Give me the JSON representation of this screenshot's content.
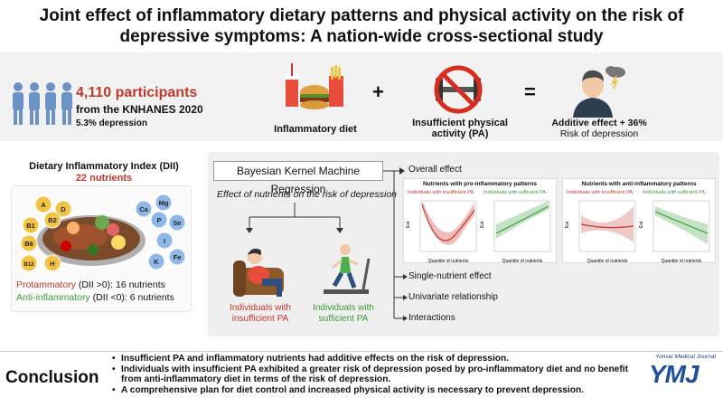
{
  "title_line1": "Joint effect of inflammatory dietary patterns and physical activity on the risk of",
  "title_line2": "depressive symptoms: A nation-wide cross-sectional study",
  "participants": {
    "count": "4,110 participants",
    "source": "from the KNHANES 2020",
    "depression": "5.3% depression"
  },
  "equation": {
    "plus": "+",
    "equals": "=",
    "diet_label": "Inflammatory diet",
    "pa_label_1": "Insufficient physical",
    "pa_label_2": "activity (PA)",
    "result_1": "Additive effect + 36%",
    "result_2": "Risk of depression"
  },
  "dii": {
    "title": "Dietary Inflammatory Index (DII)",
    "count": "22 nutrients",
    "pro": "Protammatory",
    "pro_rest": " (DII >0): 16 nutrients",
    "anti": "Anti-inflammatory",
    "anti_rest": " (DII <0): 6 nutrients",
    "nutrients": [
      {
        "label": "A",
        "color": "#f3c443"
      },
      {
        "label": "D",
        "color": "#f3c443"
      },
      {
        "label": "B1",
        "color": "#f3c443"
      },
      {
        "label": "B2",
        "color": "#f3c443"
      },
      {
        "label": "B6",
        "color": "#f3c443"
      },
      {
        "label": "B12",
        "color": "#f3c443"
      },
      {
        "label": "H",
        "color": "#f3c443"
      },
      {
        "label": "Ca",
        "color": "#8fb8e6"
      },
      {
        "label": "Mg",
        "color": "#8fb8e6"
      },
      {
        "label": "P",
        "color": "#8fb8e6"
      },
      {
        "label": "Se",
        "color": "#8fb8e6"
      },
      {
        "label": "I",
        "color": "#8fb8e6"
      },
      {
        "label": "K",
        "color": "#8fb8e6"
      },
      {
        "label": "Fe",
        "color": "#8fb8e6"
      }
    ]
  },
  "bkmr": {
    "title": "Bayesian Kernel Machine Regression",
    "caption": "Effect of nutrients on the risk of depression",
    "insufficient_1": "Individuals with",
    "insufficient_2": "insufficient PA",
    "sufficient_1": "Individuals with",
    "sufficient_2": "sufficient PA",
    "overall": "Overall effect",
    "single": "Single-nutrient effect",
    "univariate": "Univariate relationship",
    "interactions": "Interactions"
  },
  "plots": {
    "pro_title": "Nutrients with pro-inflammatory patterns",
    "anti_title": "Nutrients with anti-inflammatory patterns",
    "insufficient": "Individuals with insufficient PA",
    "sufficient": "Individuals with sufficient PA",
    "xlabel": "Quantile of nutrients",
    "ylabel": "Est",
    "xticks": [
      "0.25",
      "0.50",
      "0.75",
      "1.00"
    ],
    "pro_yticks_red": [
      "0.2",
      "0.0",
      "-0.2"
    ],
    "pro_yticks_green": [
      "0.2",
      "0.0",
      "-0.2",
      "-0.4"
    ],
    "anti_yticks_red": [
      "0.05",
      "0.00",
      "-0.05",
      "-0.10"
    ],
    "anti_yticks_green": [
      "0.1",
      "0.0",
      "-0.1"
    ]
  },
  "conclusion": {
    "heading": "Conclusion",
    "b1": "Insufficient PA and inflammatory nutrients had additive effects on the risk of depression.",
    "b2a": "Individuals with insufficient PA exhibited a greater risk of depression posed by pro-inflammatory diet and no benefit",
    "b2b": "from anti-inflammatory diet in terms of the risk of depression.",
    "b3": "A comprehensive plan for diet control and increased physical activity is necessary to prevent depression."
  },
  "journal": {
    "name": "Yonsei Medical Journal",
    "abbr": "YMJ"
  },
  "colors": {
    "red": "#c0392b",
    "green": "#3a9a3a",
    "blue_people": "#6b93c8",
    "ymj": "#1f4f99"
  }
}
